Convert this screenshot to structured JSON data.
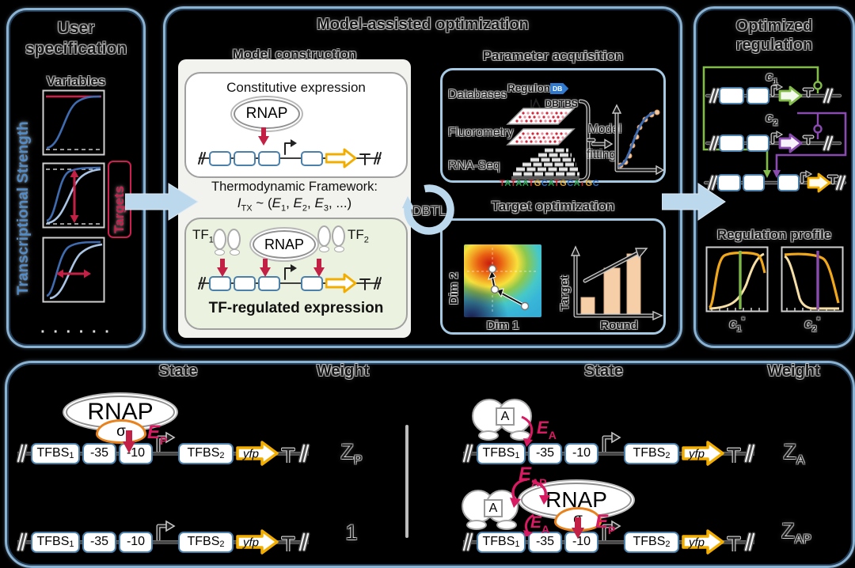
{
  "left": {
    "title": "User specification",
    "variables": "Variables",
    "axis": "Transcriptional Strength",
    "targets": "Targets",
    "dots": "· · · · · ·"
  },
  "mid": {
    "title": "Model-assisted optimization",
    "construction": {
      "heading": "Model construction",
      "constitutive": "Constitutive expression",
      "rnap": "RNAP",
      "thermo": "Thermodynamic Framework:",
      "formula": {
        "i": "I",
        "i_sub": "TX",
        "mid": " ~ (",
        "e": "E",
        "s1": "1",
        "s2": "2",
        "s3": "3",
        "sep": ", ",
        "end": ", ...)"
      },
      "tf1": {
        "m": "TF",
        "s": "1"
      },
      "tf2": {
        "m": "TF",
        "s": "2"
      },
      "tf_reg": "TF-regulated expression"
    },
    "dbtl": "DBTL",
    "param": {
      "heading": "Parameter acquisition",
      "databases": "Databases",
      "fluorometry": "Fluorometry",
      "rnaseq": "RNA-Seq",
      "regulon": "Regulon",
      "regulon_db": "DB",
      "dbtbs": "DBTBS",
      "model": "Model",
      "fitting": "fitting",
      "sequence": "TATAATGCATGCATGC"
    },
    "target": {
      "heading": "Target optimization",
      "dim1": "Dim 1",
      "dim2": "Dim 2",
      "bar_y": "Target",
      "bar_x": "Round",
      "bars": [
        23,
        60,
        78
      ]
    }
  },
  "right": {
    "title": "Optimized regulation",
    "c1": {
      "m": "c",
      "s": "1"
    },
    "c2": {
      "m": "c",
      "s": "2"
    },
    "profile": "Regulation profile",
    "c1s": {
      "m": "c",
      "s": "1",
      "sup": "*"
    },
    "c2s": {
      "m": "c",
      "s": "2",
      "sup": "*"
    }
  },
  "bottom": {
    "state": "State",
    "weight": "Weight",
    "dna": {
      "tfbs1": {
        "m": "TFBS",
        "s": "1"
      },
      "m35": "-35",
      "m10": "-10",
      "tfbs2": {
        "m": "TFBS",
        "s": "2"
      },
      "gene": "yfp"
    },
    "rnap": "RNAP",
    "sigma": "σ",
    "act": "A",
    "ep": {
      "m": "E",
      "s": "P"
    },
    "ea": {
      "m": "E",
      "s": "A"
    },
    "eap": {
      "m": "E",
      "s": "AP"
    },
    "zp": {
      "m": "Z",
      "s": "P"
    },
    "one": "1",
    "za": {
      "m": "Z",
      "s": "A"
    },
    "zap": {
      "m": "Z",
      "s": "AP"
    }
  },
  "colors": {
    "panel_border": "#8ab2d2",
    "flow_arrow": "#bcd8ec",
    "crimson": "#c32045",
    "pink_energy": "#d81a62",
    "gold": "#f2ae00",
    "green": "#82bb4a",
    "purple": "#8a4bb0",
    "dna_box_blue": "#4b80ab",
    "bar_peach": "#f6cfa8",
    "curve_blue": "#3f6cb0",
    "curve_light_blue": "#a9c4e4",
    "sigma_orange": "#e8821d"
  }
}
